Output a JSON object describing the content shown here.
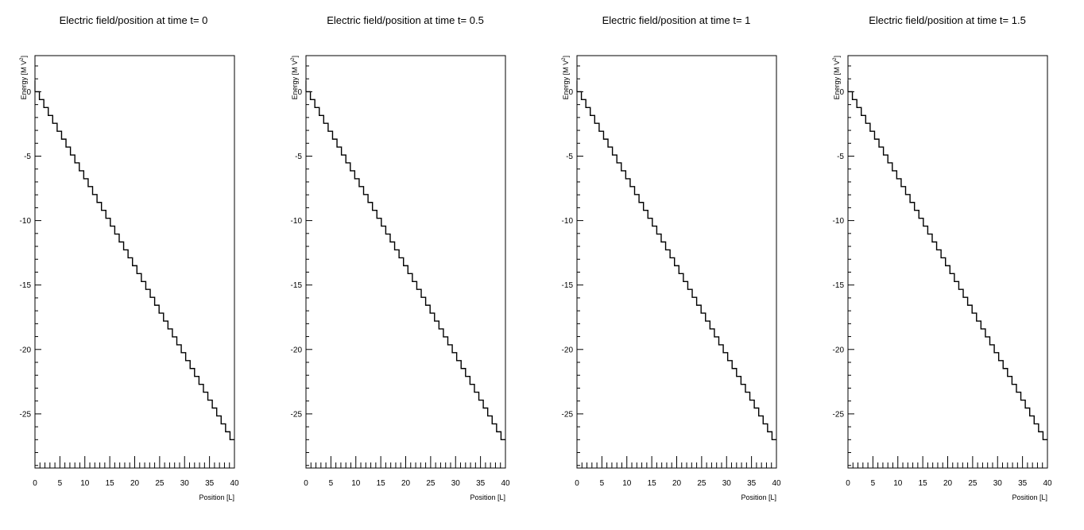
{
  "chart_data": [
    {
      "type": "line",
      "title": "Electric field/position at time t= 0",
      "xlabel": "Position [L]",
      "ylabel": "Energy [M V",
      "ylabel_sup": "2",
      "ylabel_end": "]",
      "xlim": [
        0,
        40
      ],
      "ylim": [
        -29.2,
        2.8
      ],
      "xticks": [
        "0",
        "5",
        "10",
        "15",
        "20",
        "25",
        "30",
        "35",
        "40"
      ],
      "yticks": [
        "0",
        "-5",
        "-10",
        "-15",
        "-20",
        "-25"
      ],
      "series": [
        {
          "step": "post",
          "x": [
            0,
            40
          ],
          "bins": 45,
          "y_start": 0,
          "y_end": -27.0
        }
      ]
    },
    {
      "type": "line",
      "title": "Electric field/position at time t= 0.5",
      "xlabel": "Position [L]",
      "ylabel": "Energy [M V",
      "ylabel_sup": "2",
      "ylabel_end": "]",
      "xlim": [
        0,
        40
      ],
      "ylim": [
        -29.2,
        2.8
      ],
      "xticks": [
        "0",
        "5",
        "10",
        "15",
        "20",
        "25",
        "30",
        "35",
        "40"
      ],
      "yticks": [
        "0",
        "-5",
        "-10",
        "-15",
        "-20",
        "-25"
      ],
      "series": [
        {
          "step": "post",
          "x": [
            0,
            40
          ],
          "bins": 45,
          "y_start": 0,
          "y_end": -27.0
        }
      ]
    },
    {
      "type": "line",
      "title": "Electric field/position at time t= 1",
      "xlabel": "Position [L]",
      "ylabel": "Energy [M V",
      "ylabel_sup": "2",
      "ylabel_end": "]",
      "xlim": [
        0,
        40
      ],
      "ylim": [
        -29.2,
        2.8
      ],
      "xticks": [
        "0",
        "5",
        "10",
        "15",
        "20",
        "25",
        "30",
        "35",
        "40"
      ],
      "yticks": [
        "0",
        "-5",
        "-10",
        "-15",
        "-20",
        "-25"
      ],
      "series": [
        {
          "step": "post",
          "x": [
            0,
            40
          ],
          "bins": 45,
          "y_start": 0,
          "y_end": -27.0
        }
      ]
    },
    {
      "type": "line",
      "title": "Electric field/position at time t= 1.5",
      "xlabel": "Position [L]",
      "ylabel": "Energy [M V",
      "ylabel_sup": "2",
      "ylabel_end": "]",
      "xlim": [
        0,
        40
      ],
      "ylim": [
        -29.2,
        2.8
      ],
      "xticks": [
        "0",
        "5",
        "10",
        "15",
        "20",
        "25",
        "30",
        "35",
        "40"
      ],
      "yticks": [
        "0",
        "-5",
        "-10",
        "-15",
        "-20",
        "-25"
      ],
      "series": [
        {
          "step": "post",
          "x": [
            0,
            40
          ],
          "bins": 45,
          "y_start": 0,
          "y_end": -27.0
        }
      ]
    }
  ]
}
